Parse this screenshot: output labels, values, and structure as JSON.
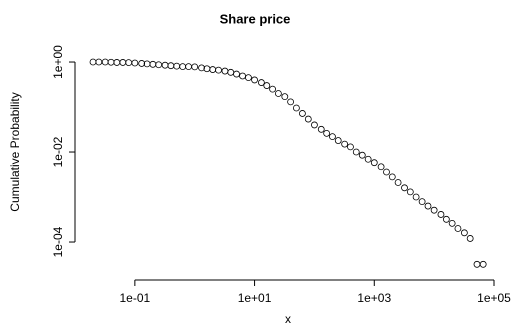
{
  "chart_data": {
    "type": "scatter",
    "title": "Share price",
    "x_label": "x",
    "y_label": "Cumulative Probability",
    "x": [
      0.02,
      0.025,
      0.032,
      0.04,
      0.05,
      0.063,
      0.079,
      0.1,
      0.13,
      0.16,
      0.2,
      0.25,
      0.32,
      0.4,
      0.5,
      0.63,
      0.79,
      1.0,
      1.3,
      1.6,
      2.0,
      2.5,
      3.2,
      4.0,
      5.0,
      6.3,
      7.9,
      10,
      13,
      16,
      20,
      25,
      32,
      40,
      50,
      63,
      79,
      100,
      130,
      160,
      200,
      250,
      320,
      400,
      500,
      630,
      790,
      1000,
      1300,
      1600,
      2000,
      2500,
      3200,
      4000,
      5000,
      6300,
      7900,
      10000,
      13000,
      16000,
      20000,
      25000,
      32000,
      40000,
      52000,
      66000
    ],
    "values": [
      1,
      1,
      1,
      0.99,
      0.98,
      0.98,
      0.97,
      0.95,
      0.93,
      0.91,
      0.89,
      0.87,
      0.85,
      0.83,
      0.81,
      0.79,
      0.79,
      0.78,
      0.74,
      0.71,
      0.68,
      0.66,
      0.63,
      0.59,
      0.54,
      0.49,
      0.45,
      0.4,
      0.35,
      0.3,
      0.25,
      0.2,
      0.17,
      0.13,
      0.095,
      0.072,
      0.054,
      0.04,
      0.032,
      0.026,
      0.022,
      0.018,
      0.015,
      0.013,
      0.01,
      0.0085,
      0.0069,
      0.0058,
      0.0047,
      0.0036,
      0.0028,
      0.0021,
      0.0016,
      0.0013,
      0.001,
      0.00079,
      0.00063,
      0.00051,
      0.00041,
      0.00032,
      0.00026,
      0.0002,
      0.00016,
      0.00012,
      3.2e-05,
      3.2e-05
    ],
    "color": "#000000",
    "x_log": true,
    "y_log": true,
    "xlim": [
      0.01,
      126000
    ],
    "ylim": [
      1.85e-05,
      1.67
    ],
    "xticks": [
      {
        "value": 0.1,
        "label": "1e-01"
      },
      {
        "value": 10,
        "label": "1e+01"
      },
      {
        "value": 1000,
        "label": "1e+03"
      },
      {
        "value": 100000,
        "label": "1e+05"
      }
    ],
    "yticks": [
      {
        "value": 1,
        "label": "1e+00"
      },
      {
        "value": 0.01,
        "label": "1e-02"
      },
      {
        "value": 0.0001,
        "label": "1e-04"
      }
    ],
    "grid": false
  }
}
